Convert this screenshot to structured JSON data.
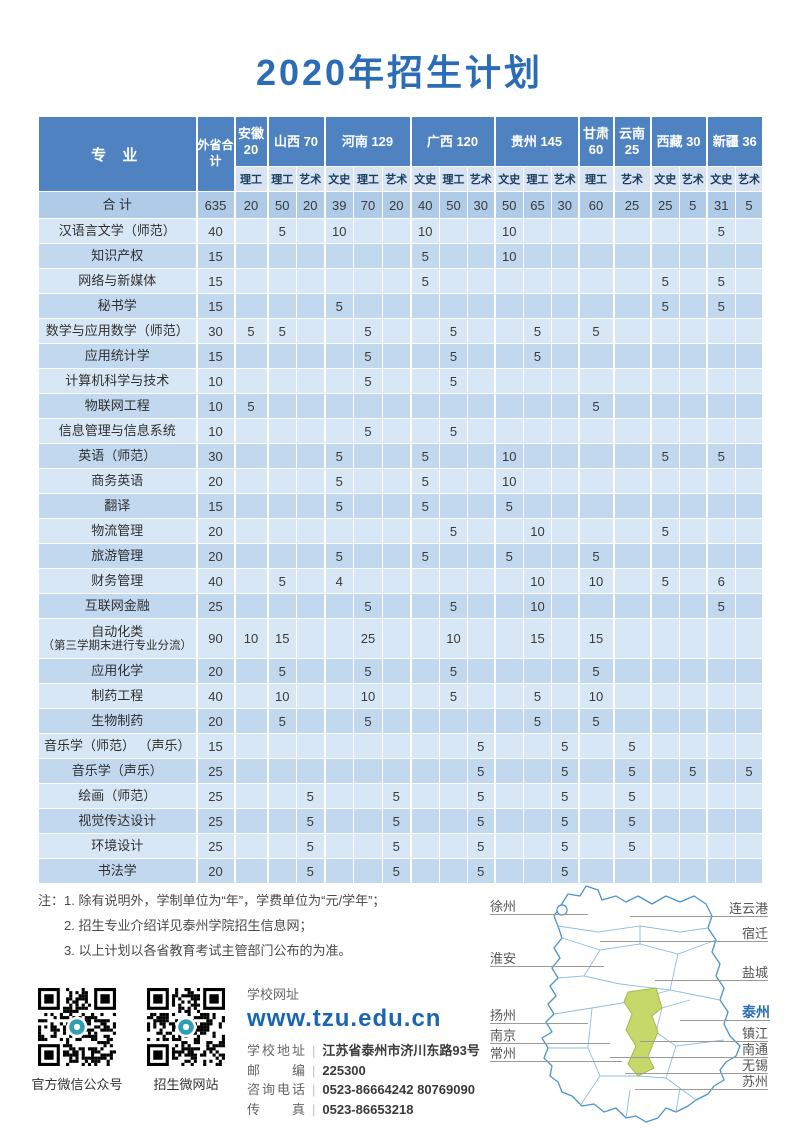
{
  "title": "2020年招生计划",
  "table": {
    "major_header": "专 业",
    "total_header": "外省合计",
    "col_groups": [
      {
        "label": "安徽 20",
        "subs": [
          "理工"
        ]
      },
      {
        "label": "山西 70",
        "subs": [
          "理工",
          "艺术"
        ]
      },
      {
        "label": "河南 129",
        "subs": [
          "文史",
          "理工",
          "艺术"
        ]
      },
      {
        "label": "广西 120",
        "subs": [
          "文史",
          "理工",
          "艺术"
        ]
      },
      {
        "label": "贵州 145",
        "subs": [
          "文史",
          "理工",
          "艺术"
        ]
      },
      {
        "label": "甘肃 60",
        "subs": [
          "理工"
        ]
      },
      {
        "label": "云南 25",
        "subs": [
          "艺术"
        ]
      },
      {
        "label": "西藏 30",
        "subs": [
          "文史",
          "艺术"
        ]
      },
      {
        "label": "新疆 36",
        "subs": [
          "文史",
          "艺术"
        ]
      }
    ],
    "rows": [
      {
        "major": "合 计",
        "total": "635",
        "is_total": true,
        "values": [
          "20",
          "50",
          "20",
          "39",
          "70",
          "20",
          "40",
          "50",
          "30",
          "50",
          "65",
          "30",
          "60",
          "25",
          "25",
          "5",
          "31",
          "5"
        ]
      },
      {
        "major": "汉语言文学（师范）",
        "total": "40",
        "values": [
          "",
          "5",
          "",
          "10",
          "",
          "",
          "10",
          "",
          "",
          "10",
          "",
          "",
          "",
          "",
          "",
          "",
          "5",
          ""
        ]
      },
      {
        "major": "知识产权",
        "total": "15",
        "values": [
          "",
          "",
          "",
          "",
          "",
          "",
          "5",
          "",
          "",
          "10",
          "",
          "",
          "",
          "",
          "",
          "",
          "",
          ""
        ]
      },
      {
        "major": "网络与新媒体",
        "total": "15",
        "values": [
          "",
          "",
          "",
          "",
          "",
          "",
          "5",
          "",
          "",
          "",
          "",
          "",
          "",
          "",
          "5",
          "",
          "5",
          ""
        ]
      },
      {
        "major": "秘书学",
        "total": "15",
        "values": [
          "",
          "",
          "",
          "5",
          "",
          "",
          "",
          "",
          "",
          "",
          "",
          "",
          "",
          "",
          "5",
          "",
          "5",
          ""
        ]
      },
      {
        "major": "数学与应用数学（师范）",
        "total": "30",
        "values": [
          "5",
          "5",
          "",
          "",
          "5",
          "",
          "",
          "5",
          "",
          "",
          "5",
          "",
          "5",
          "",
          "",
          "",
          "",
          ""
        ]
      },
      {
        "major": "应用统计学",
        "total": "15",
        "values": [
          "",
          "",
          "",
          "",
          "5",
          "",
          "",
          "5",
          "",
          "",
          "5",
          "",
          "",
          "",
          "",
          "",
          "",
          ""
        ]
      },
      {
        "major": "计算机科学与技术",
        "total": "10",
        "values": [
          "",
          "",
          "",
          "",
          "5",
          "",
          "",
          "5",
          "",
          "",
          "",
          "",
          "",
          "",
          "",
          "",
          "",
          ""
        ]
      },
      {
        "major": "物联网工程",
        "total": "10",
        "values": [
          "5",
          "",
          "",
          "",
          "",
          "",
          "",
          "",
          "",
          "",
          "",
          "",
          "5",
          "",
          "",
          "",
          "",
          ""
        ]
      },
      {
        "major": "信息管理与信息系统",
        "total": "10",
        "values": [
          "",
          "",
          "",
          "",
          "5",
          "",
          "",
          "5",
          "",
          "",
          "",
          "",
          "",
          "",
          "",
          "",
          "",
          ""
        ]
      },
      {
        "major": "英语（师范）",
        "total": "30",
        "values": [
          "",
          "",
          "",
          "5",
          "",
          "",
          "5",
          "",
          "",
          "10",
          "",
          "",
          "",
          "",
          "5",
          "",
          "5",
          ""
        ]
      },
      {
        "major": "商务英语",
        "total": "20",
        "values": [
          "",
          "",
          "",
          "5",
          "",
          "",
          "5",
          "",
          "",
          "10",
          "",
          "",
          "",
          "",
          "",
          "",
          "",
          ""
        ]
      },
      {
        "major": "翻译",
        "total": "15",
        "values": [
          "",
          "",
          "",
          "5",
          "",
          "",
          "5",
          "",
          "",
          "5",
          "",
          "",
          "",
          "",
          "",
          "",
          "",
          ""
        ]
      },
      {
        "major": "物流管理",
        "total": "20",
        "values": [
          "",
          "",
          "",
          "",
          "",
          "",
          "",
          "5",
          "",
          "",
          "10",
          "",
          "",
          "",
          "5",
          "",
          "",
          ""
        ]
      },
      {
        "major": "旅游管理",
        "total": "20",
        "values": [
          "",
          "",
          "",
          "5",
          "",
          "",
          "5",
          "",
          "",
          "5",
          "",
          "",
          "5",
          "",
          "",
          "",
          "",
          ""
        ]
      },
      {
        "major": "财务管理",
        "total": "40",
        "values": [
          "",
          "5",
          "",
          "4",
          "",
          "",
          "",
          "",
          "",
          "",
          "10",
          "",
          "10",
          "",
          "5",
          "",
          "6",
          ""
        ]
      },
      {
        "major": "互联网金融",
        "total": "25",
        "values": [
          "",
          "",
          "",
          "",
          "5",
          "",
          "",
          "5",
          "",
          "",
          "10",
          "",
          "",
          "",
          "",
          "",
          "5",
          ""
        ]
      },
      {
        "major": "自动化类",
        "major_sub": "（第三学期末进行专业分流）",
        "total": "90",
        "is_tall": true,
        "values": [
          "10",
          "15",
          "",
          "",
          "25",
          "",
          "",
          "10",
          "",
          "",
          "15",
          "",
          "15",
          "",
          "",
          "",
          "",
          ""
        ]
      },
      {
        "major": "应用化学",
        "total": "20",
        "values": [
          "",
          "5",
          "",
          "",
          "5",
          "",
          "",
          "5",
          "",
          "",
          "",
          "",
          "5",
          "",
          "",
          "",
          "",
          ""
        ]
      },
      {
        "major": "制药工程",
        "total": "40",
        "values": [
          "",
          "10",
          "",
          "",
          "10",
          "",
          "",
          "5",
          "",
          "",
          "5",
          "",
          "10",
          "",
          "",
          "",
          "",
          ""
        ]
      },
      {
        "major": "生物制药",
        "total": "20",
        "values": [
          "",
          "5",
          "",
          "",
          "5",
          "",
          "",
          "",
          "",
          "",
          "5",
          "",
          "5",
          "",
          "",
          "",
          "",
          ""
        ]
      },
      {
        "major": "音乐学（师范） （声乐）",
        "total": "15",
        "values": [
          "",
          "",
          "",
          "",
          "",
          "",
          "",
          "",
          "5",
          "",
          "",
          "5",
          "",
          "5",
          "",
          "",
          "",
          ""
        ]
      },
      {
        "major": "音乐学（声乐）",
        "total": "25",
        "values": [
          "",
          "",
          "",
          "",
          "",
          "",
          "",
          "",
          "5",
          "",
          "",
          "5",
          "",
          "5",
          "",
          "5",
          "",
          "5"
        ]
      },
      {
        "major": "绘画（师范）",
        "total": "25",
        "values": [
          "",
          "",
          "5",
          "",
          "",
          "5",
          "",
          "",
          "5",
          "",
          "",
          "5",
          "",
          "5",
          "",
          "",
          "",
          ""
        ]
      },
      {
        "major": "视觉传达设计",
        "total": "25",
        "values": [
          "",
          "",
          "5",
          "",
          "",
          "5",
          "",
          "",
          "5",
          "",
          "",
          "5",
          "",
          "5",
          "",
          "",
          "",
          ""
        ]
      },
      {
        "major": "环境设计",
        "total": "25",
        "values": [
          "",
          "",
          "5",
          "",
          "",
          "5",
          "",
          "",
          "5",
          "",
          "",
          "5",
          "",
          "5",
          "",
          "",
          "",
          ""
        ]
      },
      {
        "major": "书法学",
        "total": "20",
        "values": [
          "",
          "",
          "5",
          "",
          "",
          "5",
          "",
          "",
          "5",
          "",
          "",
          "5",
          "",
          "",
          "",
          "",
          "",
          ""
        ]
      }
    ]
  },
  "notes": {
    "prefix": "注：",
    "items": [
      "1. 除有说明外，学制单位为“年”，学费单位为“元/学年”；",
      "2. 招生专业介绍详见泰州学院招生信息网；",
      "3. 以上计划以各省教育考试主管部门公布的为准。"
    ]
  },
  "contact": {
    "qr_labels": [
      "官方微信公众号",
      "招生微网站"
    ],
    "website_label": "学校网址",
    "website": "www.tzu.edu.cn",
    "rows": [
      {
        "label": "学校地址",
        "value": "江苏省泰州市济川东路93号"
      },
      {
        "label": "邮 编",
        "value": "225300"
      },
      {
        "label": "咨询电话",
        "value": "0523-86664242  80769090"
      },
      {
        "label": "传 真",
        "value": "0523-86653218"
      }
    ]
  },
  "map": {
    "left_cities": [
      "徐州",
      "淮安",
      "扬州",
      "南京",
      "常州"
    ],
    "right_cities": [
      "连云港",
      "宿迁",
      "盐城",
      "泰州",
      "镇江",
      "南通",
      "无锡",
      "苏州"
    ],
    "highlight_city": "泰州"
  },
  "colors": {
    "accent_blue": "#2a6cb5",
    "header_blue": "#4e82c0",
    "row_light": "#d8e7f5",
    "row_mid": "#c2d8ee",
    "total_row": "#b0cbe7",
    "map_highlight_green": "#c6d869"
  }
}
